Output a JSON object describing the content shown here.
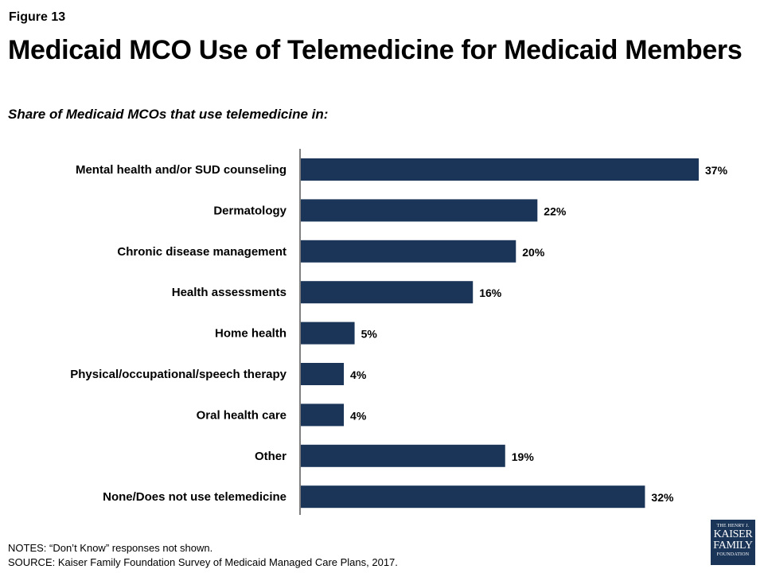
{
  "header": {
    "figure_label": "Figure 13",
    "title": "Medicaid MCO Use of Telemedicine for Medicaid Members",
    "subtitle": "Share of Medicaid MCOs that use telemedicine in:"
  },
  "chart_data": {
    "type": "bar",
    "orientation": "horizontal",
    "categories": [
      "Mental health and/or SUD counseling",
      "Dermatology",
      "Chronic disease management",
      "Health assessments",
      "Home health",
      "Physical/occupational/speech therapy",
      "Oral health care",
      "Other",
      "None/Does not use telemedicine"
    ],
    "values": [
      37,
      22,
      20,
      16,
      5,
      4,
      4,
      19,
      32
    ],
    "data_labels": [
      "37%",
      "22%",
      "20%",
      "16%",
      "5%",
      "4%",
      "4%",
      "19%",
      "32%"
    ],
    "xlim": [
      0,
      40
    ],
    "grid": false,
    "legend": "none",
    "bar_color": "#1b3558"
  },
  "footer": {
    "notes": "NOTES: “Don’t Know” responses not shown.",
    "source": "SOURCE: Kaiser Family Foundation Survey of Medicaid Managed Care Plans, 2017."
  },
  "logo": {
    "line1": "THE HENRY J.",
    "line2": "KAISER",
    "line3": "FAMILY",
    "line4": "FOUNDATION"
  }
}
